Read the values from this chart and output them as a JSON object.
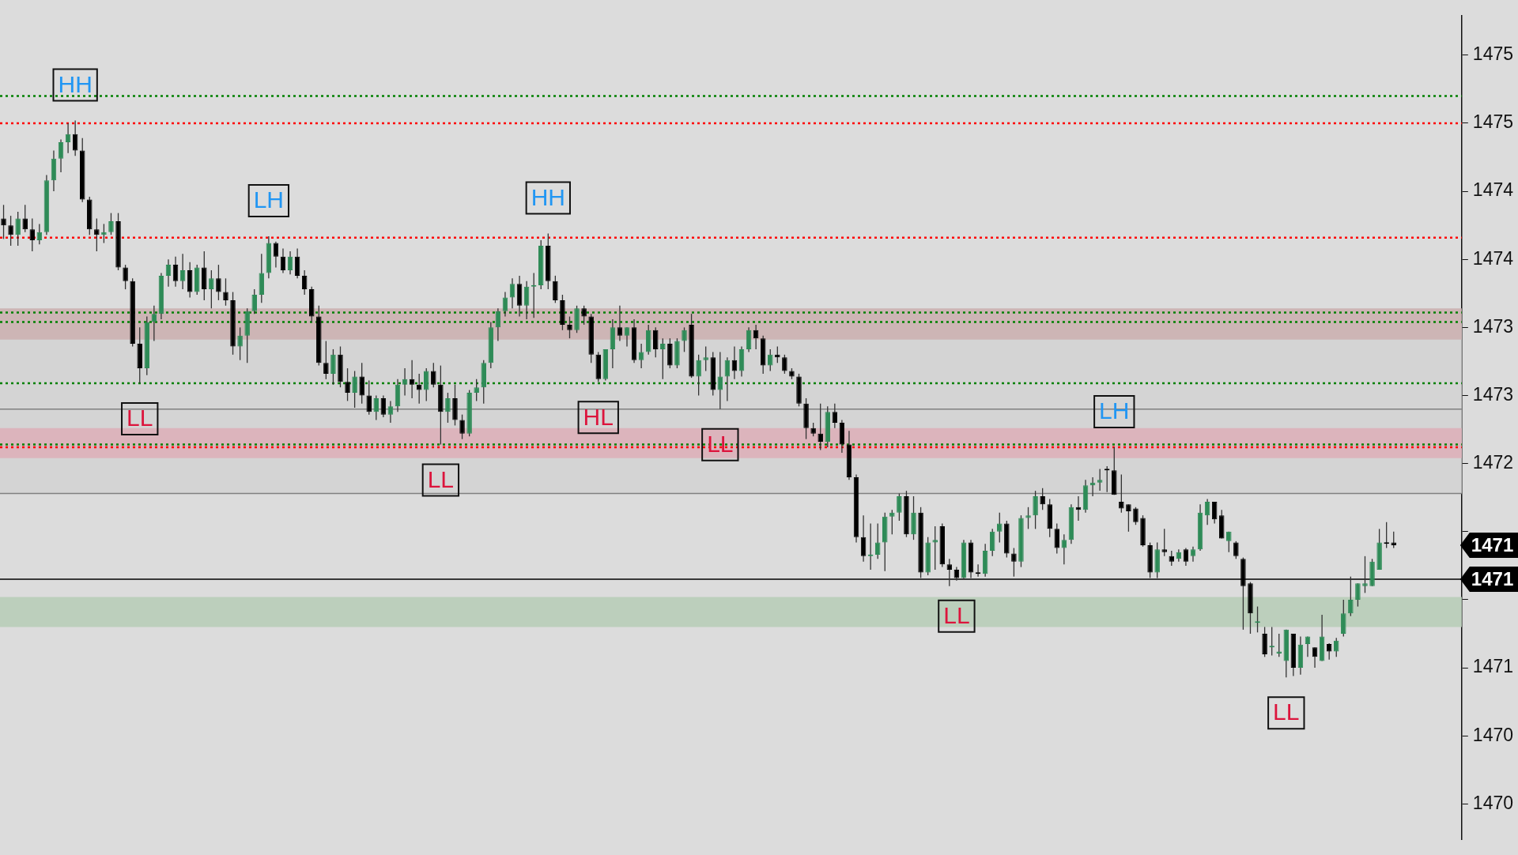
{
  "chart_data": {
    "type": "candlestick",
    "categories": [
      null,
      null,
      null,
      null,
      null,
      null,
      null,
      null,
      null,
      null,
      null,
      null,
      null,
      null,
      null,
      null,
      null,
      null,
      null,
      null,
      null,
      null,
      null,
      null,
      null,
      null,
      null,
      null,
      null,
      null,
      null,
      null,
      null,
      null,
      null,
      null,
      null,
      null,
      null,
      null,
      null,
      null,
      null,
      null,
      null,
      null,
      null,
      null,
      null,
      null,
      null,
      null,
      null,
      null,
      null,
      null,
      null,
      null,
      null,
      null,
      null,
      null,
      null,
      null,
      null,
      null,
      null,
      null,
      null,
      null,
      null,
      null,
      null,
      null,
      null,
      null,
      null,
      null,
      null,
      null,
      null,
      null,
      null,
      null,
      null,
      null,
      null,
      null,
      null,
      null,
      null,
      null,
      null,
      null,
      null,
      null,
      null,
      null,
      null,
      null,
      null,
      null,
      null,
      null,
      null,
      null,
      null,
      null,
      null,
      null,
      null,
      null,
      null,
      null,
      null,
      null,
      null,
      null,
      null,
      null,
      null,
      null,
      null,
      null,
      null,
      null,
      null,
      null,
      null,
      null,
      null,
      null,
      null,
      null,
      null,
      null,
      null,
      null,
      null,
      null,
      null,
      null,
      null,
      null,
      null,
      null,
      null,
      null,
      null,
      null,
      null,
      null,
      null,
      null,
      null,
      null,
      null,
      null,
      null,
      null,
      null,
      null,
      null,
      null,
      null,
      null,
      null,
      null,
      null,
      null,
      null,
      null,
      null,
      null,
      null,
      null,
      null,
      null,
      null,
      null,
      null,
      null,
      null,
      null,
      null,
      null,
      null,
      null,
      null,
      null,
      null,
      null,
      null,
      null,
      null,
      null,
      null,
      null,
      null,
      null,
      null,
      null,
      null,
      null
    ],
    "ohlc": [
      [
        1474.3,
        1474.4,
        1474.15,
        1474.25
      ],
      [
        1474.25,
        1474.32,
        1474.1,
        1474.18
      ],
      [
        1474.18,
        1474.35,
        1474.1,
        1474.3
      ],
      [
        1474.3,
        1474.4,
        1474.2,
        1474.22
      ],
      [
        1474.22,
        1474.3,
        1474.06,
        1474.14
      ],
      [
        1474.14,
        1474.26,
        1474.11,
        1474.2
      ],
      [
        1474.2,
        1474.62,
        1474.18,
        1474.58
      ],
      [
        1474.58,
        1474.8,
        1474.5,
        1474.74
      ],
      [
        1474.74,
        1474.88,
        1474.64,
        1474.86
      ],
      [
        1474.86,
        1475.0,
        1474.78,
        1474.92
      ],
      [
        1474.92,
        1475.02,
        1474.76,
        1474.8
      ],
      [
        1474.8,
        1474.89,
        1474.42,
        1474.44
      ],
      [
        1474.44,
        1474.46,
        1474.18,
        1474.22
      ],
      [
        1474.22,
        1474.3,
        1474.06,
        1474.18
      ],
      [
        1474.18,
        1474.26,
        1474.12,
        1474.2
      ],
      [
        1474.2,
        1474.34,
        1474.18,
        1474.28
      ],
      [
        1474.28,
        1474.34,
        1473.92,
        1473.94
      ],
      [
        1473.94,
        1473.96,
        1473.78,
        1473.84
      ],
      [
        1473.84,
        1473.86,
        1473.36,
        1473.38
      ],
      [
        1473.38,
        1473.5,
        1473.09,
        1473.2
      ],
      [
        1473.2,
        1473.58,
        1473.15,
        1473.54
      ],
      [
        1473.54,
        1473.66,
        1473.4,
        1473.6
      ],
      [
        1473.6,
        1473.9,
        1473.56,
        1473.88
      ],
      [
        1473.88,
        1474.0,
        1473.8,
        1473.96
      ],
      [
        1473.96,
        1474.02,
        1473.8,
        1473.84
      ],
      [
        1473.84,
        1474.04,
        1473.78,
        1473.92
      ],
      [
        1473.92,
        1473.98,
        1473.72,
        1473.76
      ],
      [
        1473.76,
        1473.96,
        1473.74,
        1473.94
      ],
      [
        1473.94,
        1474.06,
        1473.7,
        1473.78
      ],
      [
        1473.78,
        1473.92,
        1473.64,
        1473.86
      ],
      [
        1473.86,
        1473.96,
        1473.7,
        1473.76
      ],
      [
        1473.76,
        1473.86,
        1473.66,
        1473.7
      ],
      [
        1473.7,
        1473.76,
        1473.3,
        1473.36
      ],
      [
        1473.36,
        1473.5,
        1473.26,
        1473.44
      ],
      [
        1473.44,
        1473.64,
        1473.24,
        1473.62
      ],
      [
        1473.62,
        1473.78,
        1473.6,
        1473.74
      ],
      [
        1473.74,
        1474.04,
        1473.68,
        1473.9
      ],
      [
        1473.9,
        1474.17,
        1473.86,
        1474.12
      ],
      [
        1474.12,
        1474.13,
        1473.94,
        1474.02
      ],
      [
        1474.02,
        1474.08,
        1473.9,
        1473.92
      ],
      [
        1473.92,
        1474.06,
        1473.89,
        1474.02
      ],
      [
        1474.02,
        1474.08,
        1473.86,
        1473.88
      ],
      [
        1473.88,
        1473.92,
        1473.74,
        1473.78
      ],
      [
        1473.78,
        1473.8,
        1473.54,
        1473.58
      ],
      [
        1473.58,
        1473.66,
        1473.22,
        1473.24
      ],
      [
        1473.24,
        1473.4,
        1473.12,
        1473.16
      ],
      [
        1473.16,
        1473.34,
        1473.08,
        1473.3
      ],
      [
        1473.3,
        1473.36,
        1473.06,
        1473.1
      ],
      [
        1473.1,
        1473.2,
        1472.96,
        1473.02
      ],
      [
        1473.02,
        1473.18,
        1472.91,
        1473.14
      ],
      [
        1473.14,
        1473.24,
        1472.94,
        1473.0
      ],
      [
        1473.0,
        1473.11,
        1472.86,
        1472.88
      ],
      [
        1472.88,
        1473.0,
        1472.82,
        1472.98
      ],
      [
        1472.98,
        1473.0,
        1472.84,
        1472.86
      ],
      [
        1472.86,
        1472.96,
        1472.8,
        1472.92
      ],
      [
        1472.92,
        1473.12,
        1472.88,
        1473.08
      ],
      [
        1473.08,
        1473.2,
        1473.0,
        1473.12
      ],
      [
        1473.12,
        1473.26,
        1472.98,
        1473.08
      ],
      [
        1473.08,
        1473.16,
        1472.94,
        1473.04
      ],
      [
        1473.04,
        1473.2,
        1472.96,
        1473.18
      ],
      [
        1473.18,
        1473.24,
        1473.06,
        1473.08
      ],
      [
        1473.08,
        1473.22,
        1472.64,
        1472.88
      ],
      [
        1472.88,
        1473.02,
        1472.8,
        1472.98
      ],
      [
        1472.98,
        1473.08,
        1472.78,
        1472.82
      ],
      [
        1472.82,
        1472.86,
        1472.68,
        1472.72
      ],
      [
        1472.72,
        1473.04,
        1472.7,
        1473.02
      ],
      [
        1473.02,
        1473.12,
        1472.96,
        1473.06
      ],
      [
        1473.06,
        1473.26,
        1472.94,
        1473.24
      ],
      [
        1473.24,
        1473.54,
        1473.2,
        1473.5
      ],
      [
        1473.5,
        1473.64,
        1473.4,
        1473.62
      ],
      [
        1473.62,
        1473.76,
        1473.58,
        1473.72
      ],
      [
        1473.72,
        1473.86,
        1473.64,
        1473.82
      ],
      [
        1473.82,
        1473.88,
        1473.58,
        1473.66
      ],
      [
        1473.66,
        1473.84,
        1473.56,
        1473.8
      ],
      [
        1473.8,
        1473.9,
        1473.57,
        1473.81
      ],
      [
        1473.81,
        1474.14,
        1473.78,
        1474.1
      ],
      [
        1474.1,
        1474.19,
        1473.78,
        1473.84
      ],
      [
        1473.84,
        1473.88,
        1473.68,
        1473.7
      ],
      [
        1473.7,
        1473.74,
        1473.48,
        1473.52
      ],
      [
        1473.52,
        1473.58,
        1473.42,
        1473.48
      ],
      [
        1473.48,
        1473.66,
        1473.46,
        1473.64
      ],
      [
        1473.64,
        1473.66,
        1473.52,
        1473.58
      ],
      [
        1473.58,
        1473.6,
        1473.24,
        1473.3
      ],
      [
        1473.3,
        1473.32,
        1473.1,
        1473.12
      ],
      [
        1473.12,
        1473.34,
        1473.11,
        1473.34
      ],
      [
        1473.34,
        1473.56,
        1473.2,
        1473.5
      ],
      [
        1473.5,
        1473.66,
        1473.4,
        1473.44
      ],
      [
        1473.44,
        1473.5,
        1473.36,
        1473.5
      ],
      [
        1473.5,
        1473.56,
        1473.24,
        1473.26
      ],
      [
        1473.26,
        1473.38,
        1473.2,
        1473.32
      ],
      [
        1473.32,
        1473.52,
        1473.3,
        1473.48
      ],
      [
        1473.48,
        1473.5,
        1473.28,
        1473.34
      ],
      [
        1473.34,
        1473.42,
        1473.12,
        1473.38
      ],
      [
        1473.38,
        1473.42,
        1473.2,
        1473.22
      ],
      [
        1473.22,
        1473.42,
        1473.2,
        1473.4
      ],
      [
        1473.4,
        1473.5,
        1473.32,
        1473.48
      ],
      [
        1473.52,
        1473.6,
        1473.13,
        1473.14
      ],
      [
        1473.14,
        1473.3,
        1473.0,
        1473.26
      ],
      [
        1473.26,
        1473.36,
        1473.18,
        1473.28
      ],
      [
        1473.28,
        1473.32,
        1473.0,
        1473.04
      ],
      [
        1473.04,
        1473.32,
        1472.9,
        1473.14
      ],
      [
        1473.14,
        1473.28,
        1472.96,
        1473.26
      ],
      [
        1473.26,
        1473.36,
        1473.12,
        1473.18
      ],
      [
        1473.18,
        1473.36,
        1473.14,
        1473.34
      ],
      [
        1473.34,
        1473.5,
        1473.32,
        1473.48
      ],
      [
        1473.48,
        1473.52,
        1473.34,
        1473.42
      ],
      [
        1473.42,
        1473.44,
        1473.16,
        1473.22
      ],
      [
        1473.22,
        1473.34,
        1473.18,
        1473.3
      ],
      [
        1473.3,
        1473.36,
        1473.24,
        1473.28
      ],
      [
        1473.28,
        1473.3,
        1473.16,
        1473.18
      ],
      [
        1473.18,
        1473.2,
        1473.12,
        1473.14
      ],
      [
        1473.14,
        1473.16,
        1472.92,
        1472.94
      ],
      [
        1472.94,
        1472.98,
        1472.68,
        1472.76
      ],
      [
        1472.76,
        1472.8,
        1472.7,
        1472.72
      ],
      [
        1472.72,
        1472.94,
        1472.6,
        1472.66
      ],
      [
        1472.66,
        1472.92,
        1472.62,
        1472.88
      ],
      [
        1472.88,
        1472.94,
        1472.76,
        1472.8
      ],
      [
        1472.8,
        1472.82,
        1472.58,
        1472.64
      ],
      [
        1472.64,
        1472.74,
        1472.38,
        1472.4
      ],
      [
        1472.4,
        1472.42,
        1471.92,
        1471.96
      ],
      [
        1471.96,
        1472.12,
        1471.78,
        1471.82
      ],
      [
        1471.82,
        1472.06,
        1471.72,
        1471.83
      ],
      [
        1471.83,
        1472.06,
        1471.8,
        1471.92
      ],
      [
        1471.92,
        1472.14,
        1471.71,
        1472.11
      ],
      [
        1472.11,
        1472.16,
        1471.98,
        1472.14
      ],
      [
        1472.14,
        1472.28,
        1472.08,
        1472.26
      ],
      [
        1472.26,
        1472.3,
        1471.96,
        1471.98
      ],
      [
        1471.98,
        1472.26,
        1471.94,
        1472.14
      ],
      [
        1472.14,
        1472.18,
        1471.66,
        1471.7
      ],
      [
        1471.7,
        1471.96,
        1471.68,
        1471.92
      ],
      [
        1471.92,
        1472.04,
        1471.72,
        1471.94
      ],
      [
        1472.04,
        1472.06,
        1471.74,
        1471.76
      ],
      [
        1471.76,
        1471.8,
        1471.6,
        1471.72
      ],
      [
        1471.72,
        1471.74,
        1471.64,
        1471.66
      ],
      [
        1471.66,
        1471.94,
        1471.65,
        1471.92
      ],
      [
        1471.92,
        1471.94,
        1471.66,
        1471.7
      ],
      [
        1471.7,
        1471.76,
        1471.67,
        1471.69
      ],
      [
        1471.69,
        1471.91,
        1471.67,
        1471.86
      ],
      [
        1471.86,
        1472.02,
        1471.82,
        1472.0
      ],
      [
        1472.0,
        1472.14,
        1471.92,
        1472.06
      ],
      [
        1472.06,
        1472.08,
        1471.81,
        1471.84
      ],
      [
        1471.84,
        1471.88,
        1471.67,
        1471.78
      ],
      [
        1471.78,
        1472.12,
        1471.74,
        1472.1
      ],
      [
        1472.1,
        1472.18,
        1472.02,
        1472.12
      ],
      [
        1472.12,
        1472.3,
        1472.02,
        1472.26
      ],
      [
        1472.26,
        1472.32,
        1472.16,
        1472.2
      ],
      [
        1472.2,
        1472.24,
        1471.96,
        1472.02
      ],
      [
        1472.02,
        1472.06,
        1471.84,
        1471.88
      ],
      [
        1471.88,
        1471.98,
        1471.76,
        1471.94
      ],
      [
        1471.94,
        1472.2,
        1471.91,
        1472.18
      ],
      [
        1472.18,
        1472.26,
        1472.08,
        1472.16
      ],
      [
        1472.16,
        1472.38,
        1472.14,
        1472.34
      ],
      [
        1472.34,
        1472.4,
        1472.26,
        1472.36
      ],
      [
        1472.36,
        1472.46,
        1472.3,
        1472.38
      ],
      [
        1472.46,
        1472.48,
        1472.29,
        1472.45
      ],
      [
        1472.45,
        1472.62,
        1472.27,
        1472.27
      ],
      [
        1472.22,
        1472.42,
        1472.14,
        1472.17
      ],
      [
        1472.2,
        1472.2,
        1472.0,
        1472.15
      ],
      [
        1472.17,
        1472.18,
        1472.05,
        1472.07
      ],
      [
        1472.1,
        1472.12,
        1471.89,
        1471.9
      ],
      [
        1471.9,
        1471.92,
        1471.66,
        1471.7
      ],
      [
        1471.7,
        1471.92,
        1471.66,
        1471.87
      ],
      [
        1471.87,
        1472.02,
        1471.82,
        1471.85
      ],
      [
        1471.82,
        1471.86,
        1471.75,
        1471.78
      ],
      [
        1471.8,
        1471.87,
        1471.78,
        1471.85
      ],
      [
        1471.87,
        1471.88,
        1471.75,
        1471.78
      ],
      [
        1471.82,
        1471.89,
        1471.78,
        1471.87
      ],
      [
        1471.87,
        1472.2,
        1471.86,
        1472.14
      ],
      [
        1472.12,
        1472.24,
        1472.05,
        1472.22
      ],
      [
        1472.22,
        1472.22,
        1472.06,
        1472.09
      ],
      [
        1472.12,
        1472.16,
        1471.95,
        1471.95
      ],
      [
        1471.93,
        1472.0,
        1471.85,
        1472.0
      ],
      [
        1471.92,
        1471.93,
        1471.8,
        1471.82
      ],
      [
        1471.8,
        1471.81,
        1471.28,
        1471.6
      ],
      [
        1471.62,
        1471.63,
        1471.25,
        1471.4
      ],
      [
        1471.33,
        1471.45,
        1471.26,
        1471.34
      ],
      [
        1471.25,
        1471.3,
        1471.08,
        1471.1
      ],
      [
        1471.15,
        1471.3,
        1471.09,
        1471.16
      ],
      [
        1471.105,
        1471.25,
        1471.08,
        1471.12
      ],
      [
        1471.05,
        1471.28,
        1470.93,
        1471.28
      ],
      [
        1471.25,
        1471.25,
        1470.94,
        1471.0
      ],
      [
        1471.0,
        1471.23,
        1470.95,
        1471.17
      ],
      [
        1471.175,
        1471.23,
        1471.08,
        1471.23
      ],
      [
        1471.15,
        1471.15,
        1471.0,
        1471.08
      ],
      [
        1471.05,
        1471.39,
        1471.05,
        1471.23
      ],
      [
        1471.175,
        1471.18,
        1471.06,
        1471.12
      ],
      [
        1471.12,
        1471.22,
        1471.08,
        1471.2
      ],
      [
        1471.25,
        1471.5,
        1471.23,
        1471.4
      ],
      [
        1471.4,
        1471.67,
        1471.38,
        1471.5
      ],
      [
        1471.5,
        1471.62,
        1471.45,
        1471.62
      ],
      [
        1471.6,
        1471.82,
        1471.55,
        1471.62
      ],
      [
        1471.6,
        1471.8,
        1471.6,
        1471.78
      ],
      [
        1471.72,
        1472.02,
        1471.72,
        1471.92
      ],
      [
        1471.92,
        1472.07,
        1471.88,
        1471.91
      ],
      [
        1471.92,
        1472.0,
        1471.88,
        1471.9
      ],
      null,
      null,
      null,
      null,
      null,
      null,
      null,
      null,
      null
    ],
    "colors": [
      "#000000",
      "#000000",
      "#2e8b57",
      "#000000",
      "#000000",
      "#2e8b57",
      "#2e8b57",
      "#2e8b57",
      "#2e8b57",
      "#2e8b57",
      "#000000",
      "#000000",
      "#000000",
      "#000000",
      "#2e8b57",
      "#2e8b57",
      "#000000",
      "#000000",
      "#000000",
      "#000000",
      "#2e8b57",
      "#2e8b57",
      "#2e8b57",
      "#2e8b57",
      "#000000",
      "#2e8b57",
      "#000000",
      "#2e8b57",
      "#000000",
      "#2e8b57",
      "#000000",
      "#000000",
      "#000000",
      "#2e8b57",
      "#2e8b57",
      "#2e8b57",
      "#2e8b57",
      "#2e8b57",
      "#000000",
      "#000000",
      "#2e8b57",
      "#000000",
      "#000000",
      "#000000",
      "#000000",
      "#000000",
      "#2e8b57",
      "#000000",
      "#000000",
      "#2e8b57",
      "#000000",
      "#000000",
      "#2e8b57",
      "#000000",
      "#2e8b57",
      "#2e8b57",
      "#2e8b57",
      "#000000",
      "#000000",
      "#2e8b57",
      "#000000",
      "#000000",
      "#2e8b57",
      "#000000",
      "#000000",
      "#2e8b57",
      "#2e8b57",
      "#2e8b57",
      "#2e8b57",
      "#2e8b57",
      "#2e8b57",
      "#2e8b57",
      "#000000",
      "#2e8b57",
      "#2e8b57",
      "#2e8b57",
      "#000000",
      "#000000",
      "#000000",
      "#000000",
      "#2e8b57",
      "#000000",
      "#000000",
      "#000000",
      "#2e8b57",
      "#2e8b57",
      "#000000",
      "#2e8b57",
      "#000000",
      "#2e8b57",
      "#2e8b57",
      "#000000",
      "#2e8b57",
      "#000000",
      "#2e8b57",
      "#2e8b57",
      "#000000",
      "#2e8b57",
      "#2e8b57",
      "#000000",
      "#2e8b57",
      "#2e8b57",
      "#000000",
      "#2e8b57",
      "#2e8b57",
      "#000000",
      "#000000",
      "#2e8b57",
      "#000000",
      "#000000",
      "#000000",
      "#000000",
      "#000000",
      "#000000",
      "#000000",
      "#2e8b57",
      "#000000",
      "#000000",
      "#000000",
      "#000000",
      "#000000",
      "#2e8b57",
      "#2e8b57",
      "#2e8b57",
      "#2e8b57",
      "#2e8b57",
      "#000000",
      "#2e8b57",
      "#000000",
      "#2e8b57",
      "#2e8b57",
      "#000000",
      "#000000",
      "#000000",
      "#2e8b57",
      "#000000",
      "#000000",
      "#2e8b57",
      "#2e8b57",
      "#2e8b57",
      "#000000",
      "#000000",
      "#2e8b57",
      "#2e8b57",
      "#2e8b57",
      "#000000",
      "#000000",
      "#000000",
      "#2e8b57",
      "#2e8b57",
      "#000000",
      "#2e8b57",
      "#2e8b57",
      "#2e8b57",
      "#000000",
      "#000000",
      "#000000",
      "#000000",
      "#000000",
      "#000000",
      "#000000",
      "#2e8b57",
      "#000000",
      "#000000",
      "#2e8b57",
      "#000000",
      "#2e8b57",
      "#2e8b57",
      "#2e8b57",
      "#000000",
      "#000000",
      "#2e8b57",
      "#000000",
      "#000000",
      "#000000",
      "#2e8b57",
      "#000000",
      "#2e8b57",
      "#2e8b57",
      "#2e8b57",
      "#000000",
      "#2e8b57",
      "#2e8b57",
      "#000000",
      "#2e8b57",
      "#000000",
      "#2e8b57",
      "#2e8b57",
      "#2e8b57",
      "#2e8b57",
      "#2e8b57",
      "#2e8b57",
      "#2e8b57",
      "#000000",
      "#000000",
      null,
      null,
      null,
      null,
      null,
      null,
      null,
      null,
      null
    ],
    "ylim": [
      1469.74,
      1475.79
    ],
    "yticks": [
      1470,
      {
        "value": 1470.5,
        "label": "1470"
      },
      1471,
      {
        "value": 1471.5,
        "label": null
      },
      {
        "value": 1472,
        "label": null
      },
      {
        "value": 1472.5,
        "label": "1472"
      },
      1473,
      {
        "value": 1473.5,
        "label": "1473"
      },
      1474,
      {
        "value": 1474.5,
        "label": "1474"
      },
      1475,
      {
        "value": 1475.5,
        "label": "1475"
      }
    ],
    "annotations": [
      {
        "text": "HH",
        "y": 1475.02
      },
      {
        "text": "LH",
        "y": 1474.17
      },
      {
        "text": "HH",
        "y": 1474.19
      },
      {
        "text": "LL",
        "y": 1473.09
      },
      {
        "text": "LL",
        "y": 1472.64
      },
      {
        "text": "HL",
        "y": 1473.1
      },
      {
        "text": "LL",
        "y": 1472.9
      },
      {
        "text": "LL",
        "y": 1471.64
      },
      {
        "text": "LH",
        "y": 1472.62
      },
      {
        "text": "LL",
        "y": 1470.93
      },
      "1471",
      "1471"
    ],
    "ref_lines": [
      {
        "axis": "y",
        "value": 1475.2,
        "color": "#008000",
        "line_style": "dotted"
      },
      {
        "axis": "y",
        "value": 1475.0,
        "color": "#ff0000",
        "line_style": "dotted"
      },
      {
        "axis": "y",
        "value": 1474.16,
        "color": "#ff0000",
        "line_style": "dotted"
      },
      {
        "axis": "y",
        "value": 1473.61,
        "color": "#008000",
        "line_style": "dotted"
      },
      {
        "axis": "y",
        "value": 1473.54,
        "color": "#008000",
        "line_style": "dotted"
      },
      {
        "axis": "y",
        "value": 1473.09,
        "color": "#008000",
        "line_style": "dotted"
      },
      {
        "axis": "y",
        "value": 1472.9,
        "color": "#808080",
        "line_style": "solid"
      },
      {
        "axis": "y",
        "value": 1472.64,
        "color": "#008000",
        "line_style": "dotted"
      },
      {
        "axis": "y",
        "value": 1472.62,
        "color": "#ff0000",
        "line_style": "dotted"
      },
      {
        "axis": "y",
        "value": 1472.28,
        "color": "#808080",
        "line_style": "solid"
      },
      {
        "axis": "y",
        "value": 1471.65,
        "color": "#000000",
        "line_style": "solid"
      }
    ],
    "bands": [
      {
        "axis": "y",
        "from": 1472.28,
        "to": 1473.53,
        "color": "#d4d4d4"
      },
      {
        "axis": "y",
        "from": 1473.41,
        "to": 1473.64,
        "color": "#cdb5b5"
      },
      {
        "axis": "y",
        "from": 1472.54,
        "to": 1472.76,
        "color": "#dcb4bc"
      },
      {
        "axis": "y",
        "from": 1471.3,
        "to": 1471.52,
        "color": "#bccfbc"
      }
    ]
  }
}
